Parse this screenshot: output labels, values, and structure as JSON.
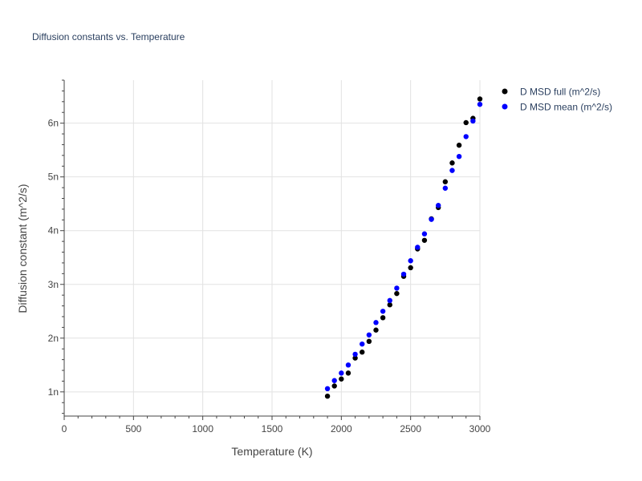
{
  "chart_data": {
    "type": "scatter",
    "title": "Diffusion constants vs. Temperature",
    "xlabel": "Temperature (K)",
    "ylabel": "Diffusion constant (m^2/s)",
    "xlim": [
      0,
      3000
    ],
    "ylim": [
      5.5e-10,
      6.8e-09
    ],
    "x_ticks": [
      0,
      500,
      1000,
      1500,
      2000,
      2500,
      3000
    ],
    "x_tick_labels": [
      "0",
      "500",
      "1000",
      "1500",
      "2000",
      "2500",
      "3000"
    ],
    "y_ticks": [
      1e-09,
      2e-09,
      3e-09,
      4e-09,
      5e-09,
      6e-09
    ],
    "y_tick_labels": [
      "1n",
      "2n",
      "3n",
      "4n",
      "5n",
      "6n"
    ],
    "grid": true,
    "legend_position": "top-right outside",
    "series": [
      {
        "name": "D MSD full (m^2/s)",
        "color": "#000000",
        "x": [
          1900,
          1950,
          2000,
          2050,
          2100,
          2150,
          2200,
          2250,
          2300,
          2350,
          2400,
          2450,
          2500,
          2550,
          2600,
          2650,
          2700,
          2750,
          2800,
          2850,
          2900,
          2950,
          3000
        ],
        "y": [
          9.2e-10,
          1.11e-09,
          1.24e-09,
          1.35e-09,
          1.63e-09,
          1.74e-09,
          1.94e-09,
          2.15e-09,
          2.38e-09,
          2.62e-09,
          2.83e-09,
          3.15e-09,
          3.31e-09,
          3.66e-09,
          3.82e-09,
          4.22e-09,
          4.43e-09,
          4.91e-09,
          5.26e-09,
          5.59e-09,
          6.01e-09,
          6.09e-09,
          6.45e-09
        ]
      },
      {
        "name": "D MSD mean (m^2/s)",
        "color": "#0000ff",
        "x": [
          1900,
          1950,
          2000,
          2050,
          2100,
          2150,
          2200,
          2250,
          2300,
          2350,
          2400,
          2450,
          2500,
          2550,
          2600,
          2650,
          2700,
          2750,
          2800,
          2850,
          2900,
          2950,
          3000
        ],
        "y": [
          1.06e-09,
          1.21e-09,
          1.35e-09,
          1.5e-09,
          1.7e-09,
          1.89e-09,
          2.06e-09,
          2.29e-09,
          2.5e-09,
          2.7e-09,
          2.93e-09,
          3.19e-09,
          3.44e-09,
          3.69e-09,
          3.94e-09,
          4.21e-09,
          4.47e-09,
          4.79e-09,
          5.12e-09,
          5.38e-09,
          5.75e-09,
          6.04e-09,
          6.35e-09
        ]
      }
    ]
  }
}
